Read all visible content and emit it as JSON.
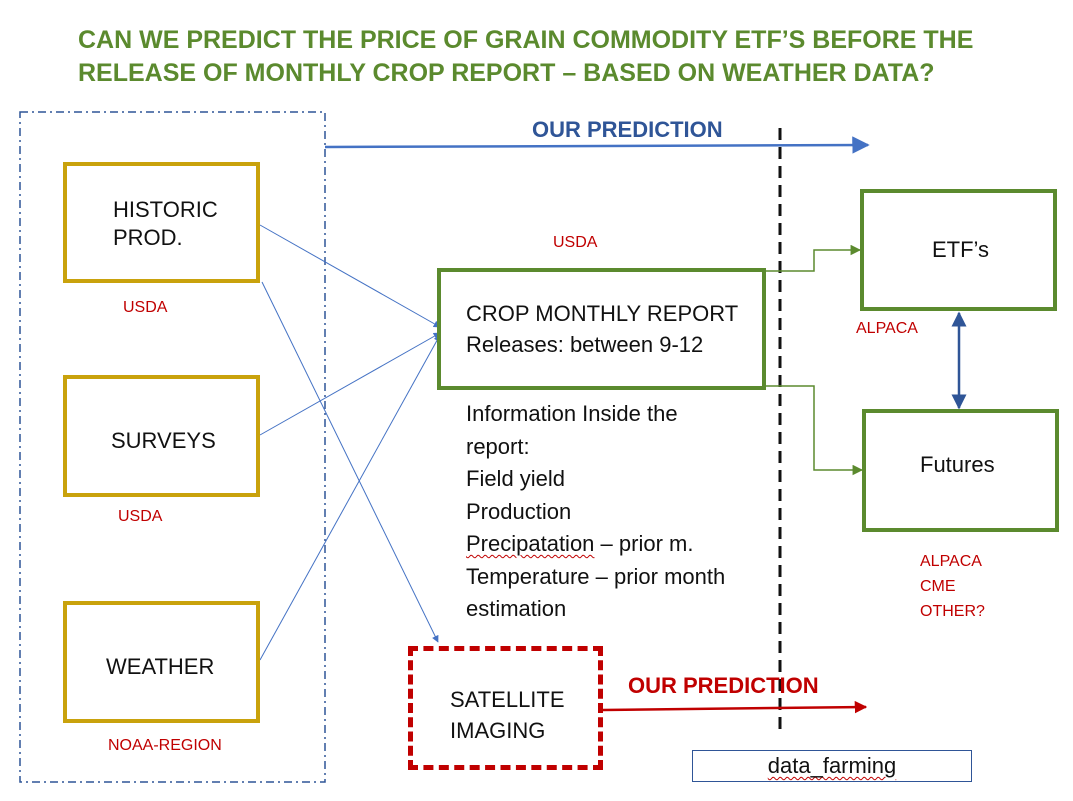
{
  "title": {
    "line1": "CAN WE PREDICT THE PRICE OF GRAIN COMMODITY ETF’S BEFORE THE",
    "line2": "RELEASE OF MONTHLY CROP REPORT – BASED ON WEATHER DATA?"
  },
  "inputs": {
    "historic": {
      "line1": "HISTORIC",
      "line2": "PROD.",
      "source": "USDA"
    },
    "surveys": {
      "label": "SURVEYS",
      "source": "USDA"
    },
    "weather": {
      "label": "WEATHER",
      "source": "NOAA-REGION"
    }
  },
  "report": {
    "source": "USDA",
    "line1": "CROP MONTHLY REPORT",
    "line2": "Releases: between 9-12",
    "info": {
      "line1": "Information Inside the",
      "line2": "report:",
      "line3": "Field yield",
      "line4": "Production",
      "line5_word": "Precipatation",
      "line5_rest": " – prior m.",
      "line6": "Temperature – prior month",
      "line7": "estimation"
    }
  },
  "outputs": {
    "etfs": {
      "label": "ETF’s",
      "source": "ALPACA"
    },
    "futures": {
      "label": "Futures",
      "sources": [
        "ALPACA",
        "CME",
        "OTHER?"
      ]
    }
  },
  "satellite": {
    "line1": "SATELLITE",
    "line2": "IMAGING"
  },
  "predictions": {
    "top": "OUR PREDICTION",
    "bottom": "OUR PREDICTION"
  },
  "footer": {
    "label": "data_farming"
  },
  "colors": {
    "gold_border": "#c9a20c",
    "green_border": "#5b8a2e",
    "red": "#c00000",
    "blue": "#2f5597",
    "thin_arrow": "#4472c4",
    "title": "#5b8a2e"
  }
}
